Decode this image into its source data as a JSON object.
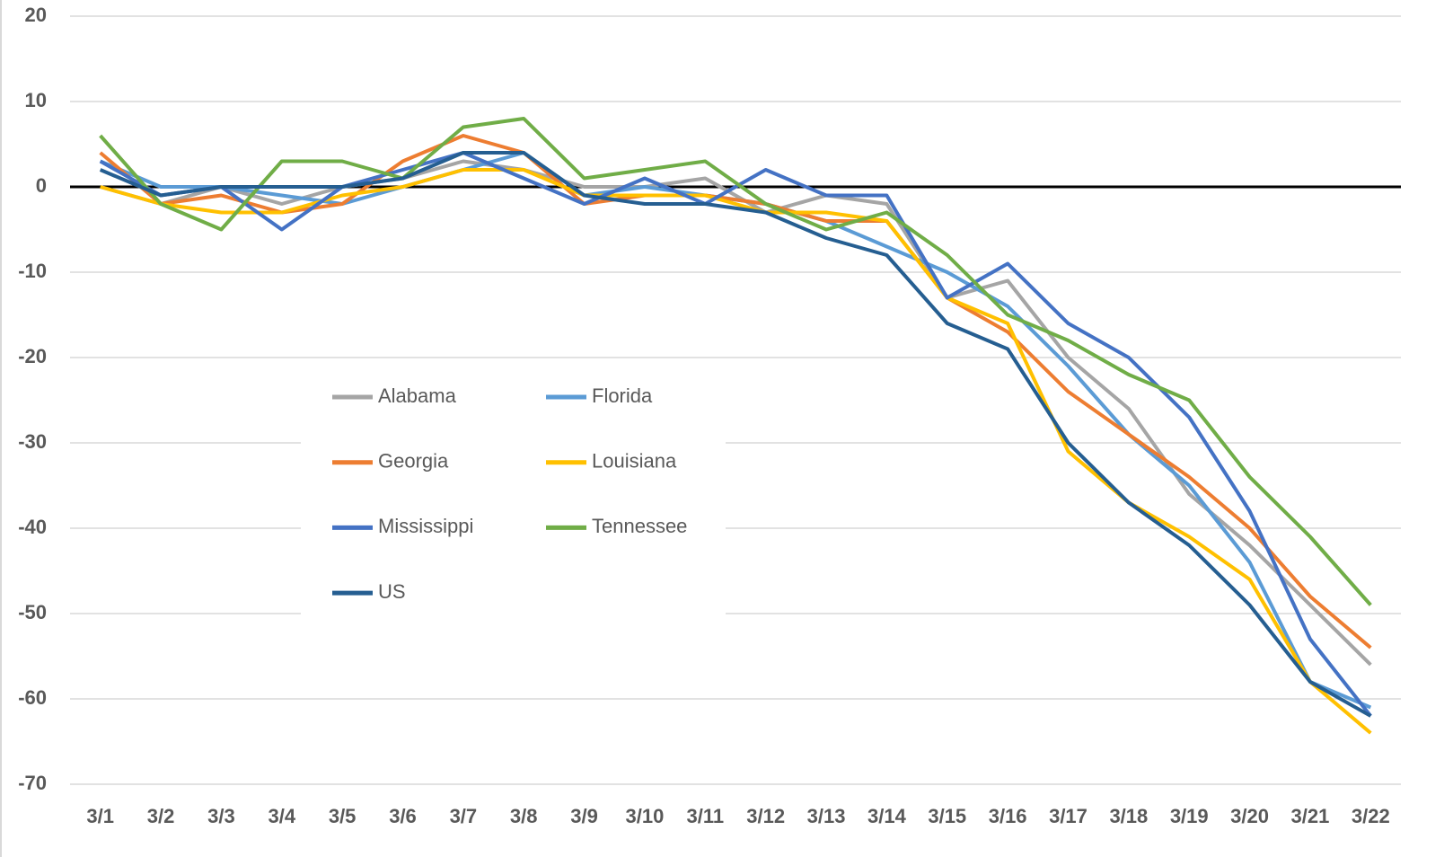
{
  "chart_data": {
    "type": "line",
    "categories": [
      "3/1",
      "3/2",
      "3/3",
      "3/4",
      "3/5",
      "3/6",
      "3/7",
      "3/8",
      "3/9",
      "3/10",
      "3/11",
      "3/12",
      "3/13",
      "3/14",
      "3/15",
      "3/16",
      "3/17",
      "3/18",
      "3/19",
      "3/20",
      "3/21",
      "3/22"
    ],
    "series": [
      {
        "name": "Alabama",
        "color": "#a5a5a5",
        "values": [
          0,
          -2,
          0,
          -2,
          0,
          1,
          3,
          2,
          0,
          0,
          1,
          -3,
          -1,
          -2,
          -13,
          -11,
          -20,
          -26,
          -36,
          -42,
          -49,
          -56
        ]
      },
      {
        "name": "Florida",
        "color": "#5b9bd5",
        "values": [
          3,
          0,
          0,
          -1,
          -2,
          0,
          2,
          4,
          -1,
          0,
          -1,
          -2,
          -4,
          -7,
          -10,
          -14,
          -21,
          -29,
          -35,
          -44,
          -58,
          -61
        ]
      },
      {
        "name": "Georgia",
        "color": "#ed7d31",
        "values": [
          4,
          -2,
          -1,
          -3,
          -2,
          3,
          6,
          4,
          -2,
          -1,
          -1,
          -2,
          -4,
          -4,
          -13,
          -17,
          -24,
          -29,
          -34,
          -40,
          -48,
          -54
        ]
      },
      {
        "name": "Louisiana",
        "color": "#ffc000",
        "values": [
          0,
          -2,
          -3,
          -3,
          -1,
          0,
          2,
          2,
          -1,
          -1,
          -1,
          -3,
          -3,
          -4,
          -13,
          -16,
          -31,
          -37,
          -41,
          -46,
          -58,
          -64
        ]
      },
      {
        "name": "Mississippi",
        "color": "#4472c4",
        "values": [
          3,
          -1,
          0,
          -5,
          0,
          2,
          4,
          1,
          -2,
          1,
          -2,
          2,
          -1,
          -1,
          -13,
          -9,
          -16,
          -20,
          -27,
          -38,
          -53,
          -62
        ]
      },
      {
        "name": "Tennessee",
        "color": "#70ad47",
        "values": [
          6,
          -2,
          -5,
          3,
          3,
          1,
          7,
          8,
          1,
          2,
          3,
          -2,
          -5,
          -3,
          -8,
          -15,
          -18,
          -22,
          -25,
          -34,
          -41,
          -49
        ]
      },
      {
        "name": "US",
        "color": "#255e91",
        "values": [
          2,
          -1,
          0,
          0,
          0,
          1,
          4,
          4,
          -1,
          -2,
          -2,
          -3,
          -6,
          -8,
          -16,
          -19,
          -30,
          -37,
          -42,
          -49,
          -58,
          -62
        ]
      }
    ],
    "ylim": [
      -70,
      20
    ],
    "yticks": [
      -70,
      -60,
      -50,
      -40,
      -30,
      -20,
      -10,
      0,
      10,
      20
    ],
    "grid": true
  }
}
